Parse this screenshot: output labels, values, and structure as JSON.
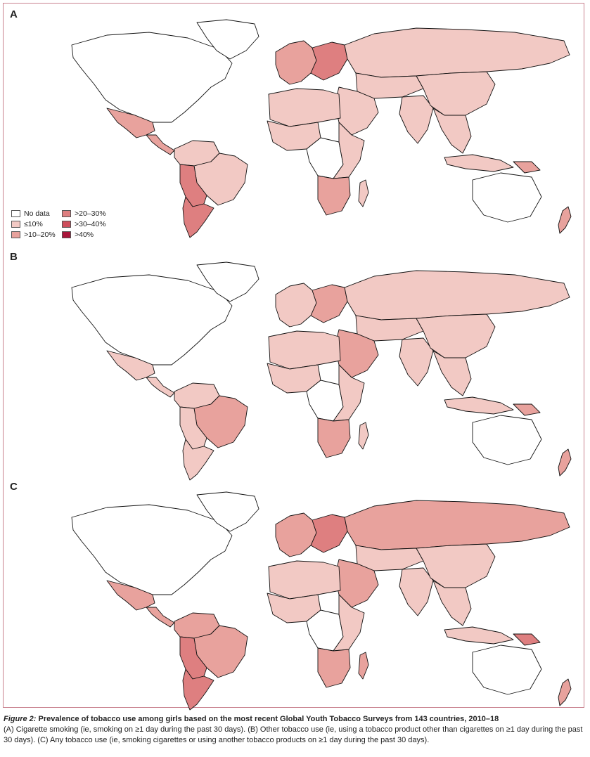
{
  "legend": [
    {
      "label": "No data",
      "color": "#ffffff"
    },
    {
      "label": "≤10%",
      "color": "#f2c9c4"
    },
    {
      "label": ">10–20%",
      "color": "#e8a29d"
    },
    {
      "label": ">20–30%",
      "color": "#de7f80"
    },
    {
      "label": ">30–40%",
      "color": "#cd4e5c"
    },
    {
      "label": ">40%",
      "color": "#a8153a"
    }
  ],
  "panels": [
    {
      "label": "A",
      "regions": {
        "north_america": 0,
        "greenland": 0,
        "mexico": 2,
        "central_america": 2,
        "south_america_north": 1,
        "brazil": 1,
        "southern_cone": 3,
        "patagonia": 3,
        "europe_west": 2,
        "europe_east": 3,
        "russia": 1,
        "central_asia": 1,
        "middle_east": 1,
        "north_africa": 1,
        "west_africa": 1,
        "central_africa": 0,
        "east_africa": 1,
        "southern_africa": 2,
        "madagascar": 1,
        "india": 1,
        "china": 1,
        "southeast_asia": 1,
        "indonesia": 1,
        "papua": 2,
        "australia": 0,
        "new_zealand": 2
      }
    },
    {
      "label": "B",
      "regions": {
        "north_america": 0,
        "greenland": 0,
        "mexico": 1,
        "central_america": 1,
        "south_america_north": 1,
        "brazil": 2,
        "southern_cone": 1,
        "patagonia": 1,
        "europe_west": 1,
        "europe_east": 2,
        "russia": 1,
        "central_asia": 1,
        "middle_east": 2,
        "north_africa": 1,
        "west_africa": 1,
        "central_africa": 0,
        "east_africa": 1,
        "southern_africa": 2,
        "madagascar": 1,
        "india": 1,
        "china": 1,
        "southeast_asia": 1,
        "indonesia": 1,
        "papua": 2,
        "australia": 0,
        "new_zealand": 2
      }
    },
    {
      "label": "C",
      "regions": {
        "north_america": 0,
        "greenland": 0,
        "mexico": 2,
        "central_america": 2,
        "south_america_north": 2,
        "brazil": 2,
        "southern_cone": 3,
        "patagonia": 3,
        "europe_west": 2,
        "europe_east": 3,
        "russia": 2,
        "central_asia": 1,
        "middle_east": 2,
        "north_africa": 1,
        "west_africa": 1,
        "central_africa": 0,
        "east_africa": 1,
        "southern_africa": 2,
        "madagascar": 2,
        "india": 1,
        "china": 1,
        "southeast_asia": 1,
        "indonesia": 1,
        "papua": 3,
        "australia": 0,
        "new_zealand": 2
      }
    }
  ],
  "caption": {
    "figure_label": "Figure 2:",
    "title": " Prevalence of tobacco use among girls based on the most recent Global Youth Tobacco Surveys from 143 countries, 2010–18",
    "body": "(A) Cigarette smoking (ie, smoking on ≥1 day during the past 30 days). (B) Other tobacco use (ie, using a tobacco product other than cigarettes on ≥1 day during the past 30 days). (C) Any tobacco use (ie, smoking cigarettes or using another tobacco products on ≥1 day during the past 30 days)."
  }
}
